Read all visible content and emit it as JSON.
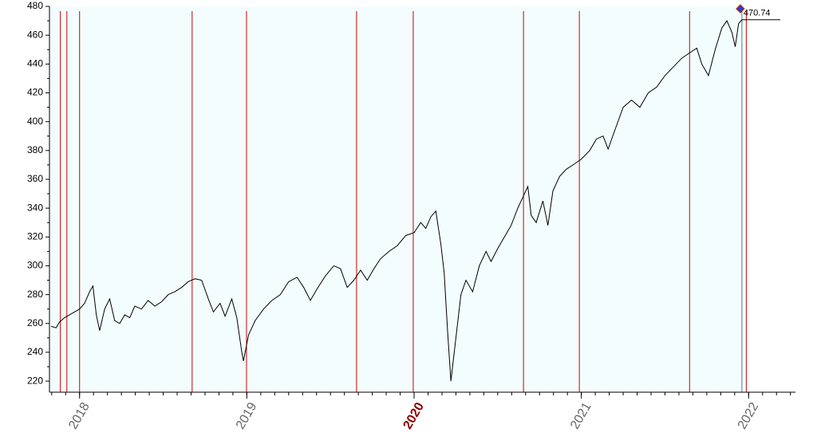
{
  "chart_data": {
    "type": "line",
    "annotation": "470.74",
    "x": [
      2017.83,
      2017.86,
      2017.88,
      2017.91,
      2017.94,
      2017.97,
      2018.0,
      2018.03,
      2018.06,
      2018.08,
      2018.1,
      2018.12,
      2018.15,
      2018.18,
      2018.21,
      2018.24,
      2018.27,
      2018.3,
      2018.33,
      2018.37,
      2018.41,
      2018.45,
      2018.49,
      2018.53,
      2018.57,
      2018.61,
      2018.65,
      2018.69,
      2018.73,
      2018.77,
      2018.8,
      2018.84,
      2018.87,
      2018.91,
      2018.94,
      2018.97,
      2018.98,
      2019.01,
      2019.05,
      2019.1,
      2019.15,
      2019.2,
      2019.25,
      2019.3,
      2019.34,
      2019.38,
      2019.42,
      2019.47,
      2019.52,
      2019.56,
      2019.6,
      2019.64,
      2019.68,
      2019.72,
      2019.76,
      2019.8,
      2019.85,
      2019.9,
      2019.95,
      2020.0,
      2020.04,
      2020.07,
      2020.1,
      2020.13,
      2020.16,
      2020.18,
      2020.2,
      2020.22,
      2020.25,
      2020.28,
      2020.31,
      2020.35,
      2020.39,
      2020.43,
      2020.46,
      2020.5,
      2020.54,
      2020.58,
      2020.62,
      2020.66,
      2020.68,
      2020.7,
      2020.73,
      2020.77,
      2020.8,
      2020.83,
      2020.87,
      2020.91,
      2020.95,
      2021.0,
      2021.05,
      2021.09,
      2021.13,
      2021.16,
      2021.2,
      2021.25,
      2021.3,
      2021.35,
      2021.4,
      2021.45,
      2021.5,
      2021.55,
      2021.6,
      2021.65,
      2021.69,
      2021.72,
      2021.76,
      2021.8,
      2021.84,
      2021.87,
      2021.9,
      2021.92,
      2021.94,
      2021.96
    ],
    "series": [
      {
        "color": "#000000",
        "values": [
          258,
          257,
          261,
          264,
          266,
          268,
          270,
          274,
          282,
          286,
          266,
          255,
          270,
          277,
          262,
          260,
          266,
          264,
          272,
          270,
          276,
          272,
          275,
          280,
          282,
          285,
          289,
          291,
          290,
          277,
          268,
          274,
          265,
          277,
          264,
          240,
          234,
          252,
          262,
          270,
          276,
          280,
          289,
          292,
          285,
          276,
          284,
          293,
          300,
          298,
          285,
          290,
          297,
          290,
          298,
          305,
          310,
          314,
          321,
          323,
          330,
          326,
          334,
          338,
          315,
          295,
          255,
          220,
          250,
          280,
          290,
          282,
          300,
          310,
          303,
          312,
          320,
          328,
          340,
          350,
          355,
          335,
          330,
          345,
          328,
          352,
          362,
          367,
          370,
          374,
          380,
          388,
          390,
          381,
          394,
          410,
          415,
          410,
          420,
          424,
          432,
          438,
          444,
          448,
          451,
          440,
          432,
          450,
          465,
          470,
          462,
          452,
          468,
          470.74
        ]
      }
    ],
    "vlines": {
      "color": "#cc0000",
      "x": [
        2017.885,
        2017.924,
        2018.0,
        2018.673,
        2018.998,
        2019.656,
        2019.995,
        2020.654,
        2020.988,
        2021.647,
        2021.986
      ]
    },
    "xlim": [
      2017.82,
      2022.28
    ],
    "xticks": [
      2018,
      2019,
      2020,
      2021,
      2022
    ],
    "ylim": [
      212.3,
      480
    ],
    "yticks": [
      220,
      240,
      260,
      280,
      300,
      320,
      340,
      360,
      380,
      400,
      420,
      440,
      460,
      480
    ]
  }
}
